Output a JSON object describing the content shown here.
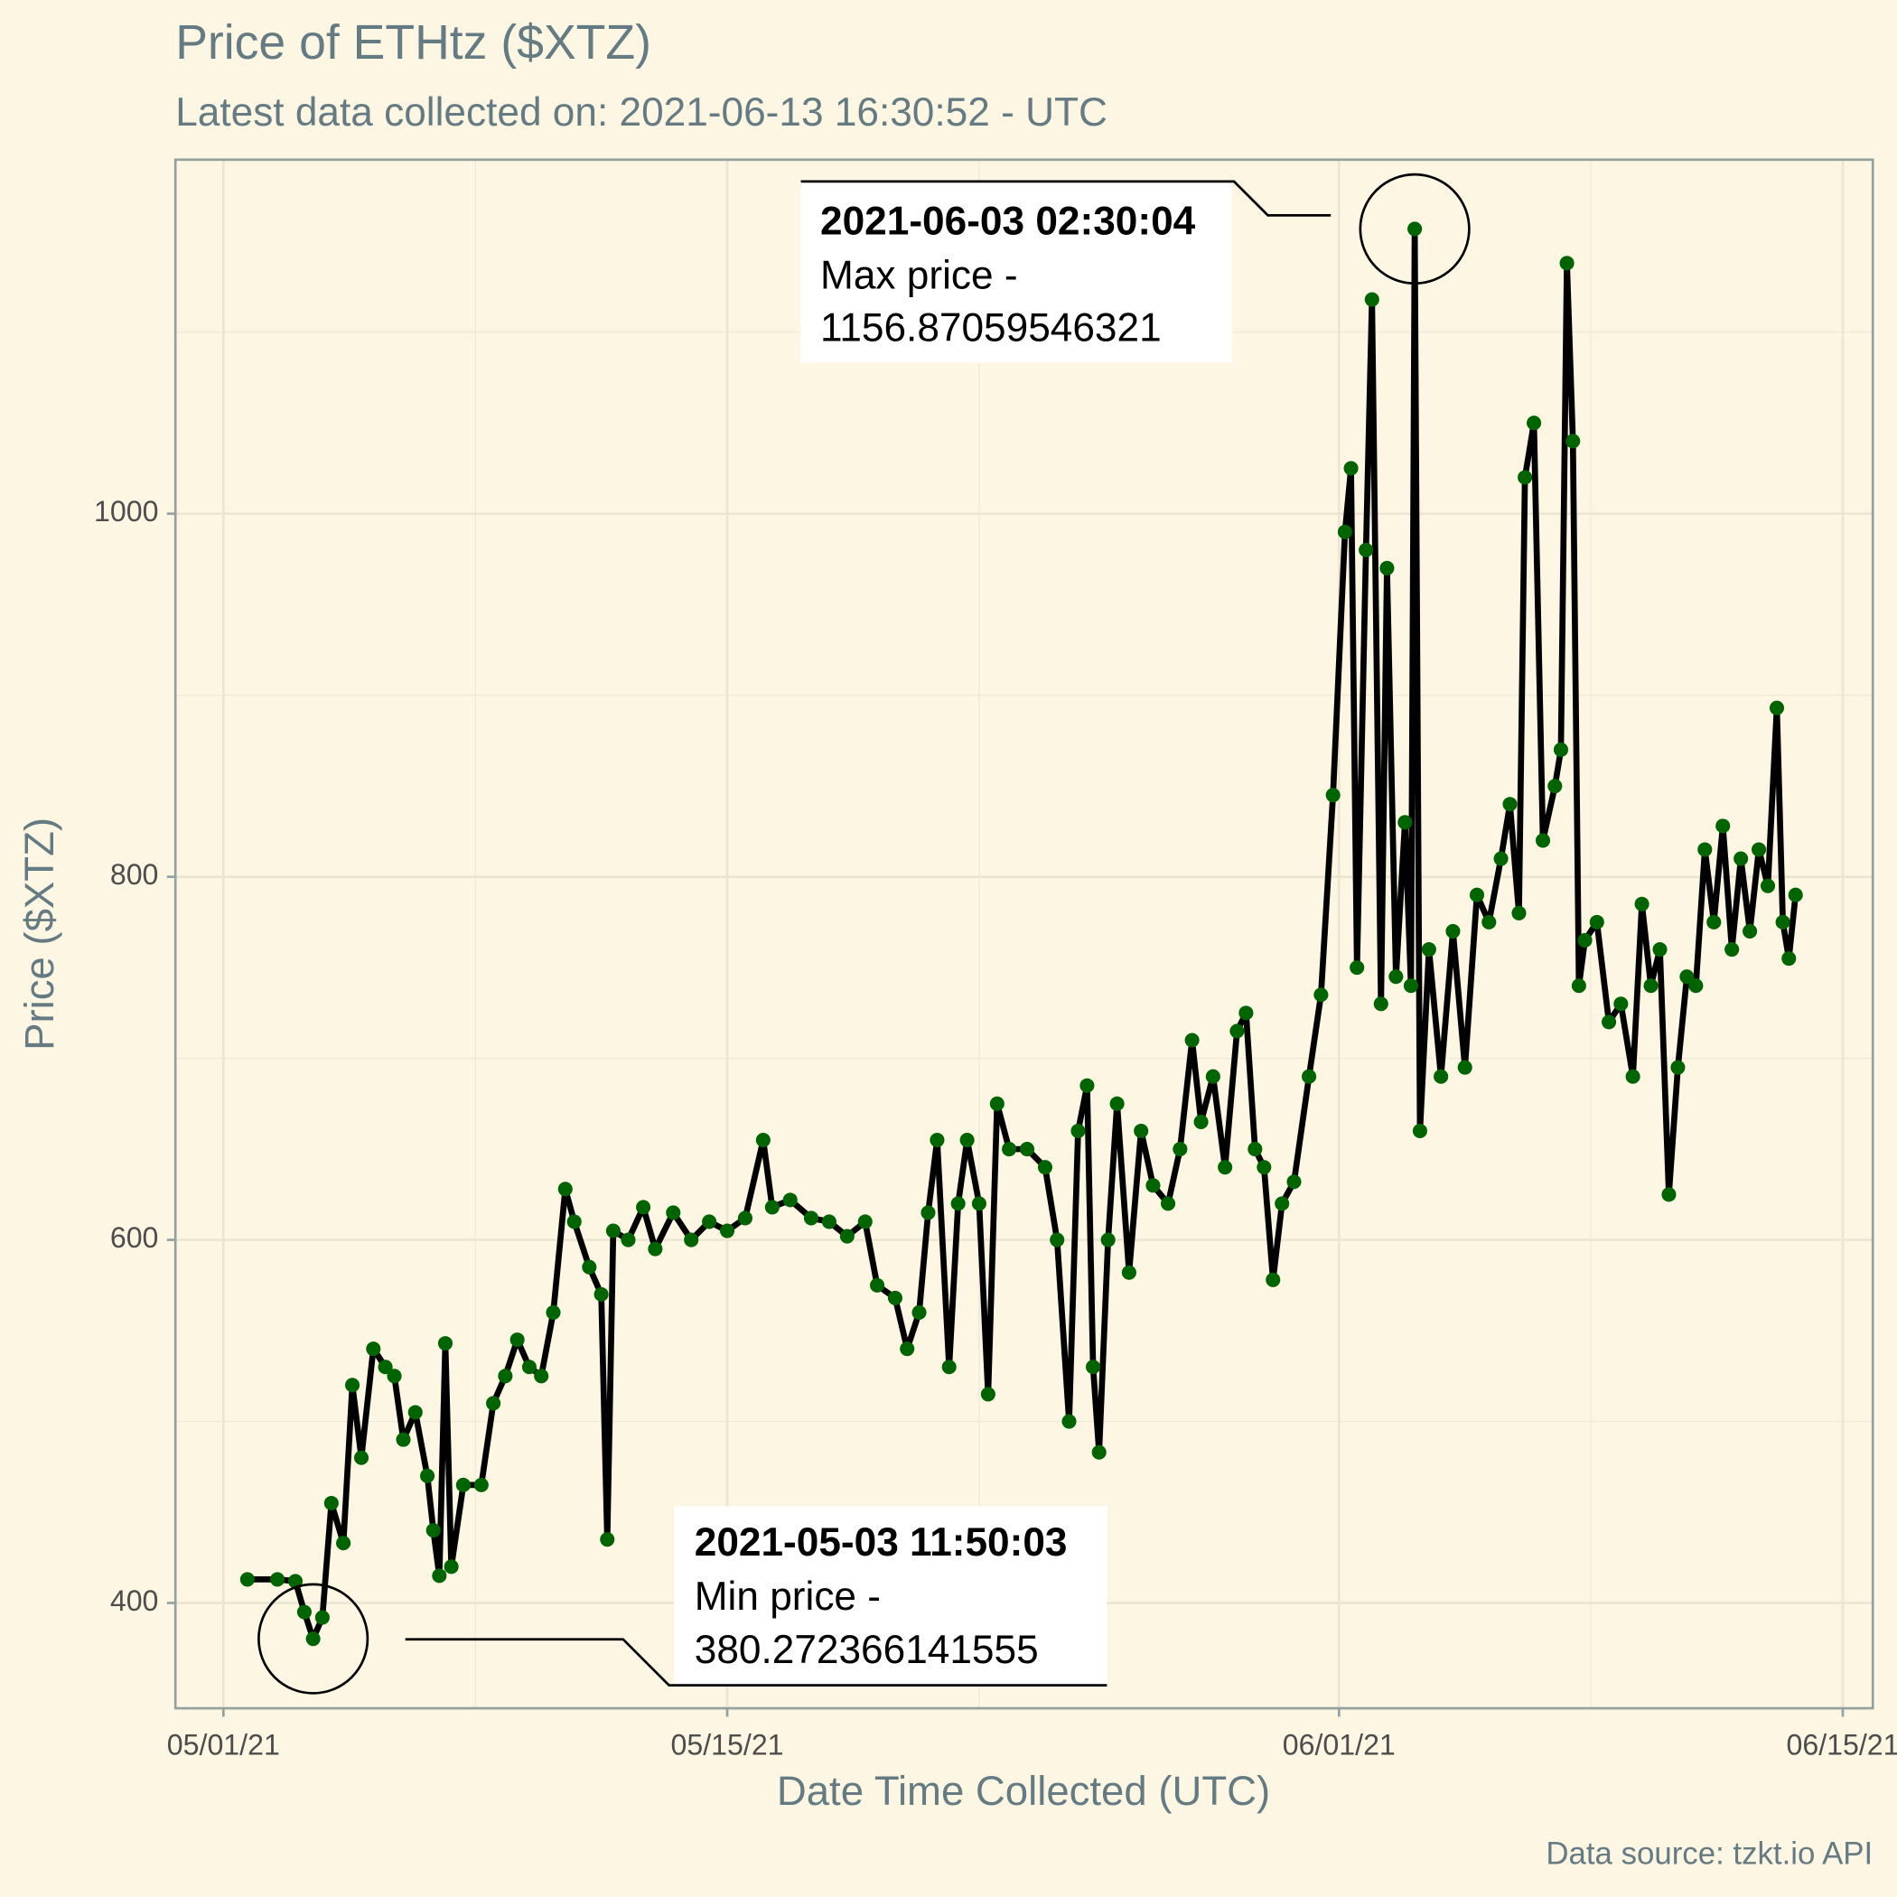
{
  "chart_data": {
    "type": "line",
    "title": "Price of ETHtz ($XTZ)",
    "subtitle": "Latest data collected on: 2021-06-13 16:30:52  - UTC",
    "x_label": "Date Time Collected (UTC)",
    "y_label": "Price ($XTZ)",
    "caption": "Data source: tzkt.io API",
    "grid": true,
    "xlim": [
      "2021-04-29 16:00",
      "2021-06-15 20:00"
    ],
    "xticks": [
      {
        "value": "2021-05-01",
        "label": "05/01/21"
      },
      {
        "value": "2021-05-15",
        "label": "05/15/21"
      },
      {
        "value": "2021-06-01",
        "label": "06/01/21"
      },
      {
        "value": "2021-06-15",
        "label": "06/15/21"
      }
    ],
    "x_minor_ticks": [
      "2021-05-08",
      "2021-05-22",
      "2021-06-08"
    ],
    "ylim": [
      342,
      1195
    ],
    "yticks": [
      400,
      600,
      800,
      1000
    ],
    "y_minor_ticks": [
      500,
      700,
      900,
      1100
    ],
    "x": [
      "2021-05-01 16:00",
      "2021-05-02 12:00",
      "2021-05-03 00:00",
      "2021-05-03 06:00",
      "2021-05-03 11:50",
      "2021-05-03 18:00",
      "2021-05-04 00:00",
      "2021-05-04 08:00",
      "2021-05-04 14:00",
      "2021-05-04 20:00",
      "2021-05-05 04:00",
      "2021-05-05 12:00",
      "2021-05-05 18:00",
      "2021-05-06 00:00",
      "2021-05-06 08:00",
      "2021-05-06 16:00",
      "2021-05-06 20:00",
      "2021-05-07 00:00",
      "2021-05-07 04:00",
      "2021-05-07 08:00",
      "2021-05-07 16:00",
      "2021-05-08 04:00",
      "2021-05-08 12:00",
      "2021-05-08 20:00",
      "2021-05-09 04:00",
      "2021-05-09 12:00",
      "2021-05-09 20:00",
      "2021-05-10 04:00",
      "2021-05-10 12:00",
      "2021-05-10 18:00",
      "2021-05-11 04:00",
      "2021-05-11 12:00",
      "2021-05-11 16:00",
      "2021-05-11 20:00",
      "2021-05-12 06:00",
      "2021-05-12 16:00",
      "2021-05-13 00:00",
      "2021-05-13 12:00",
      "2021-05-14 00:00",
      "2021-05-14 12:00",
      "2021-05-15 00:00",
      "2021-05-15 12:00",
      "2021-05-16 00:00",
      "2021-05-16 06:00",
      "2021-05-16 18:00",
      "2021-05-17 08:00",
      "2021-05-17 20:00",
      "2021-05-18 08:00",
      "2021-05-18 20:00",
      "2021-05-19 04:00",
      "2021-05-19 16:00",
      "2021-05-20 00:00",
      "2021-05-20 08:00",
      "2021-05-20 14:00",
      "2021-05-20 20:00",
      "2021-05-21 04:00",
      "2021-05-21 10:00",
      "2021-05-21 16:00",
      "2021-05-22 00:00",
      "2021-05-22 06:00",
      "2021-05-22 12:00",
      "2021-05-22 20:00",
      "2021-05-23 08:00",
      "2021-05-23 20:00",
      "2021-05-24 04:00",
      "2021-05-24 12:00",
      "2021-05-24 18:00",
      "2021-05-25 00:00",
      "2021-05-25 04:00",
      "2021-05-25 08:00",
      "2021-05-25 14:00",
      "2021-05-25 20:00",
      "2021-05-26 04:00",
      "2021-05-26 12:00",
      "2021-05-26 20:00",
      "2021-05-27 06:00",
      "2021-05-27 14:00",
      "2021-05-27 22:00",
      "2021-05-28 04:00",
      "2021-05-28 12:00",
      "2021-05-28 20:00",
      "2021-05-29 04:00",
      "2021-05-29 10:00",
      "2021-05-29 16:00",
      "2021-05-29 22:00",
      "2021-05-30 04:00",
      "2021-05-30 10:00",
      "2021-05-30 18:00",
      "2021-05-31 04:00",
      "2021-05-31 12:00",
      "2021-05-31 20:00",
      "2021-06-01 04:00",
      "2021-06-01 08:00",
      "2021-06-01 12:00",
      "2021-06-01 18:00",
      "2021-06-01 22:00",
      "2021-06-02 04:00",
      "2021-06-02 08:00",
      "2021-06-02 14:00",
      "2021-06-02 20:00",
      "2021-06-03 00:00",
      "2021-06-03 02:30",
      "2021-06-03 06:00",
      "2021-06-03 12:00",
      "2021-06-03 20:00",
      "2021-06-04 04:00",
      "2021-06-04 12:00",
      "2021-06-04 20:00",
      "2021-06-05 04:00",
      "2021-06-05 12:00",
      "2021-06-05 18:00",
      "2021-06-06 00:00",
      "2021-06-06 04:00",
      "2021-06-06 10:00",
      "2021-06-06 16:00",
      "2021-06-07 00:00",
      "2021-06-07 04:00",
      "2021-06-07 08:00",
      "2021-06-07 12:00",
      "2021-06-07 16:00",
      "2021-06-07 20:00",
      "2021-06-08 04:00",
      "2021-06-08 12:00",
      "2021-06-08 20:00",
      "2021-06-09 04:00",
      "2021-06-09 10:00",
      "2021-06-09 16:00",
      "2021-06-09 22:00",
      "2021-06-10 04:00",
      "2021-06-10 10:00",
      "2021-06-10 16:00",
      "2021-06-10 22:00",
      "2021-06-11 04:00",
      "2021-06-11 10:00",
      "2021-06-11 16:00",
      "2021-06-11 22:00",
      "2021-06-12 04:00",
      "2021-06-12 10:00",
      "2021-06-12 16:00",
      "2021-06-12 22:00",
      "2021-06-13 04:00",
      "2021-06-13 08:00",
      "2021-06-13 12:00",
      "2021-06-13 16:30"
    ],
    "series": [
      {
        "name": "Price",
        "color": "#006400",
        "line_color": "#000000",
        "values": [
          413,
          413,
          412,
          395,
          380.27,
          392,
          455,
          433,
          520,
          480,
          540,
          530,
          525,
          490,
          505,
          470,
          440,
          415,
          543,
          420,
          465,
          465,
          510,
          525,
          545,
          530,
          525,
          560,
          628,
          610,
          585,
          570,
          435,
          605,
          600,
          618,
          595,
          615,
          600,
          610,
          605,
          612,
          655,
          618,
          622,
          612,
          610,
          602,
          610,
          575,
          568,
          540,
          560,
          615,
          655,
          530,
          620,
          655,
          620,
          515,
          675,
          650,
          650,
          640,
          600,
          500,
          660,
          685,
          530,
          483,
          600,
          675,
          582,
          660,
          630,
          620,
          650,
          710,
          665,
          690,
          640,
          715,
          725,
          650,
          640,
          578,
          620,
          632,
          690,
          735,
          845,
          990,
          1025,
          750,
          980,
          1118,
          730,
          970,
          745,
          830,
          740,
          1156.87,
          660,
          760,
          690,
          770,
          695,
          790,
          775,
          810,
          840,
          780,
          1020,
          1050,
          820,
          850,
          870,
          1138,
          1040,
          740,
          765,
          775,
          720,
          730,
          690,
          785,
          740,
          760,
          625,
          695,
          745,
          740,
          815,
          775,
          828,
          760,
          810,
          770,
          815,
          795,
          893,
          775,
          755,
          790
        ]
      }
    ],
    "annotations": [
      {
        "title": "2021-06-03 02:30:04",
        "text": "Max price -",
        "value": 1156.87059546321
      },
      {
        "title": "2021-05-03 11:50:03",
        "text": "Min price -",
        "value": 380.272366141555
      }
    ]
  }
}
